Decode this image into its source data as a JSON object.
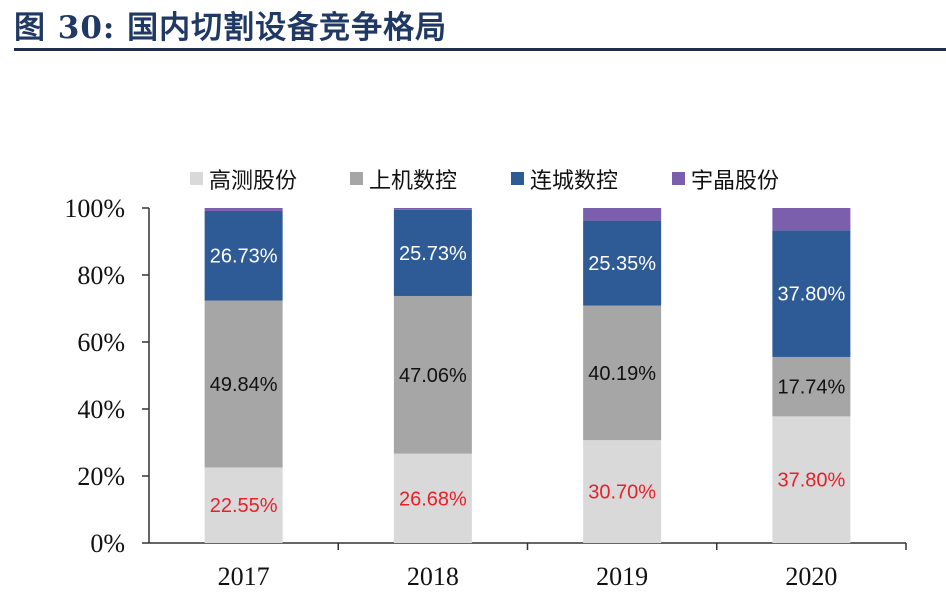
{
  "figure": {
    "title": "图 30:  国内切割设备竞争格局"
  },
  "chart_data": {
    "type": "bar",
    "stacked": true,
    "categories": [
      "2017",
      "2018",
      "2019",
      "2020"
    ],
    "ylim": [
      0,
      100
    ],
    "y_ticks": [
      "0%",
      "20%",
      "40%",
      "60%",
      "80%",
      "100%"
    ],
    "legend_position": "top",
    "series": [
      {
        "name": "高测股份",
        "color": "#d9d9d9",
        "label_color": "#e8202a",
        "values": [
          22.55,
          26.68,
          30.7,
          37.8
        ],
        "labels": [
          "22.55%",
          "26.68%",
          "30.70%",
          "37.80%"
        ]
      },
      {
        "name": "上机数控",
        "color": "#a6a6a6",
        "label_color": "#111111",
        "values": [
          49.84,
          47.06,
          40.19,
          17.74
        ],
        "labels": [
          "49.84%",
          "47.06%",
          "40.19%",
          "17.74%"
        ]
      },
      {
        "name": "连城数控",
        "color": "#2e5a96",
        "label_color": "#ffffff",
        "values": [
          26.73,
          25.73,
          25.35,
          37.8
        ],
        "labels": [
          "26.73%",
          "25.73%",
          "25.35%",
          "37.80%"
        ]
      },
      {
        "name": "宇晶股份",
        "color": "#7b5fad",
        "label_color": "#ffffff",
        "values": [
          0.88,
          0.53,
          3.76,
          6.66
        ],
        "labels": [
          "",
          "",
          "",
          ""
        ]
      }
    ]
  }
}
